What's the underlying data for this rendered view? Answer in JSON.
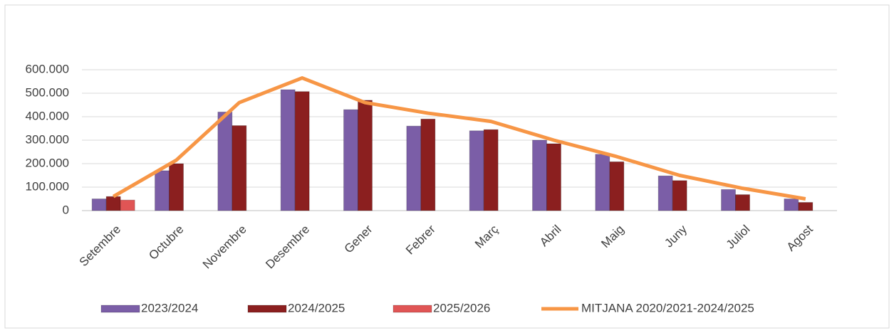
{
  "chart_data": {
    "type": "bar",
    "categories": [
      "Setembre",
      "Octubre",
      "Novembre",
      "Desembre",
      "Gener",
      "Febrer",
      "Març",
      "Abril",
      "Maig",
      "Juny",
      "Juliol",
      "Agost"
    ],
    "series": [
      {
        "name": "2023/2024",
        "color": "#7b5ea7",
        "values": [
          50000,
          170000,
          420000,
          515000,
          430000,
          360000,
          340000,
          300000,
          240000,
          148000,
          90000,
          50000
        ]
      },
      {
        "name": "2024/2025",
        "color": "#8b1f1f",
        "values": [
          60000,
          200000,
          362000,
          507000,
          470000,
          390000,
          345000,
          285000,
          208000,
          128000,
          68000,
          35000
        ]
      },
      {
        "name": "2025/2026",
        "color": "#e05555",
        "values": [
          45000,
          null,
          null,
          null,
          null,
          null,
          null,
          null,
          null,
          null,
          null,
          null
        ]
      },
      {
        "name": "MITJANA 2020/2021-2024/2025",
        "color": "#f79646",
        "type": "line",
        "values": [
          60000,
          215000,
          460000,
          565000,
          460000,
          415000,
          380000,
          300000,
          230000,
          150000,
          95000,
          50000
        ]
      }
    ],
    "ylim": [
      0,
      600000
    ],
    "yticks": [
      0,
      {
        "value": 100000,
        "label": "100.000"
      },
      {
        "value": 200000,
        "label": "200.000"
      },
      {
        "value": 300000,
        "label": "300.000"
      },
      {
        "value": 400000,
        "label": "400.000"
      },
      {
        "value": 500000,
        "label": "500.000"
      },
      {
        "value": 600000,
        "label": "600.000"
      }
    ],
    "grid": true,
    "legend": "bottom"
  }
}
